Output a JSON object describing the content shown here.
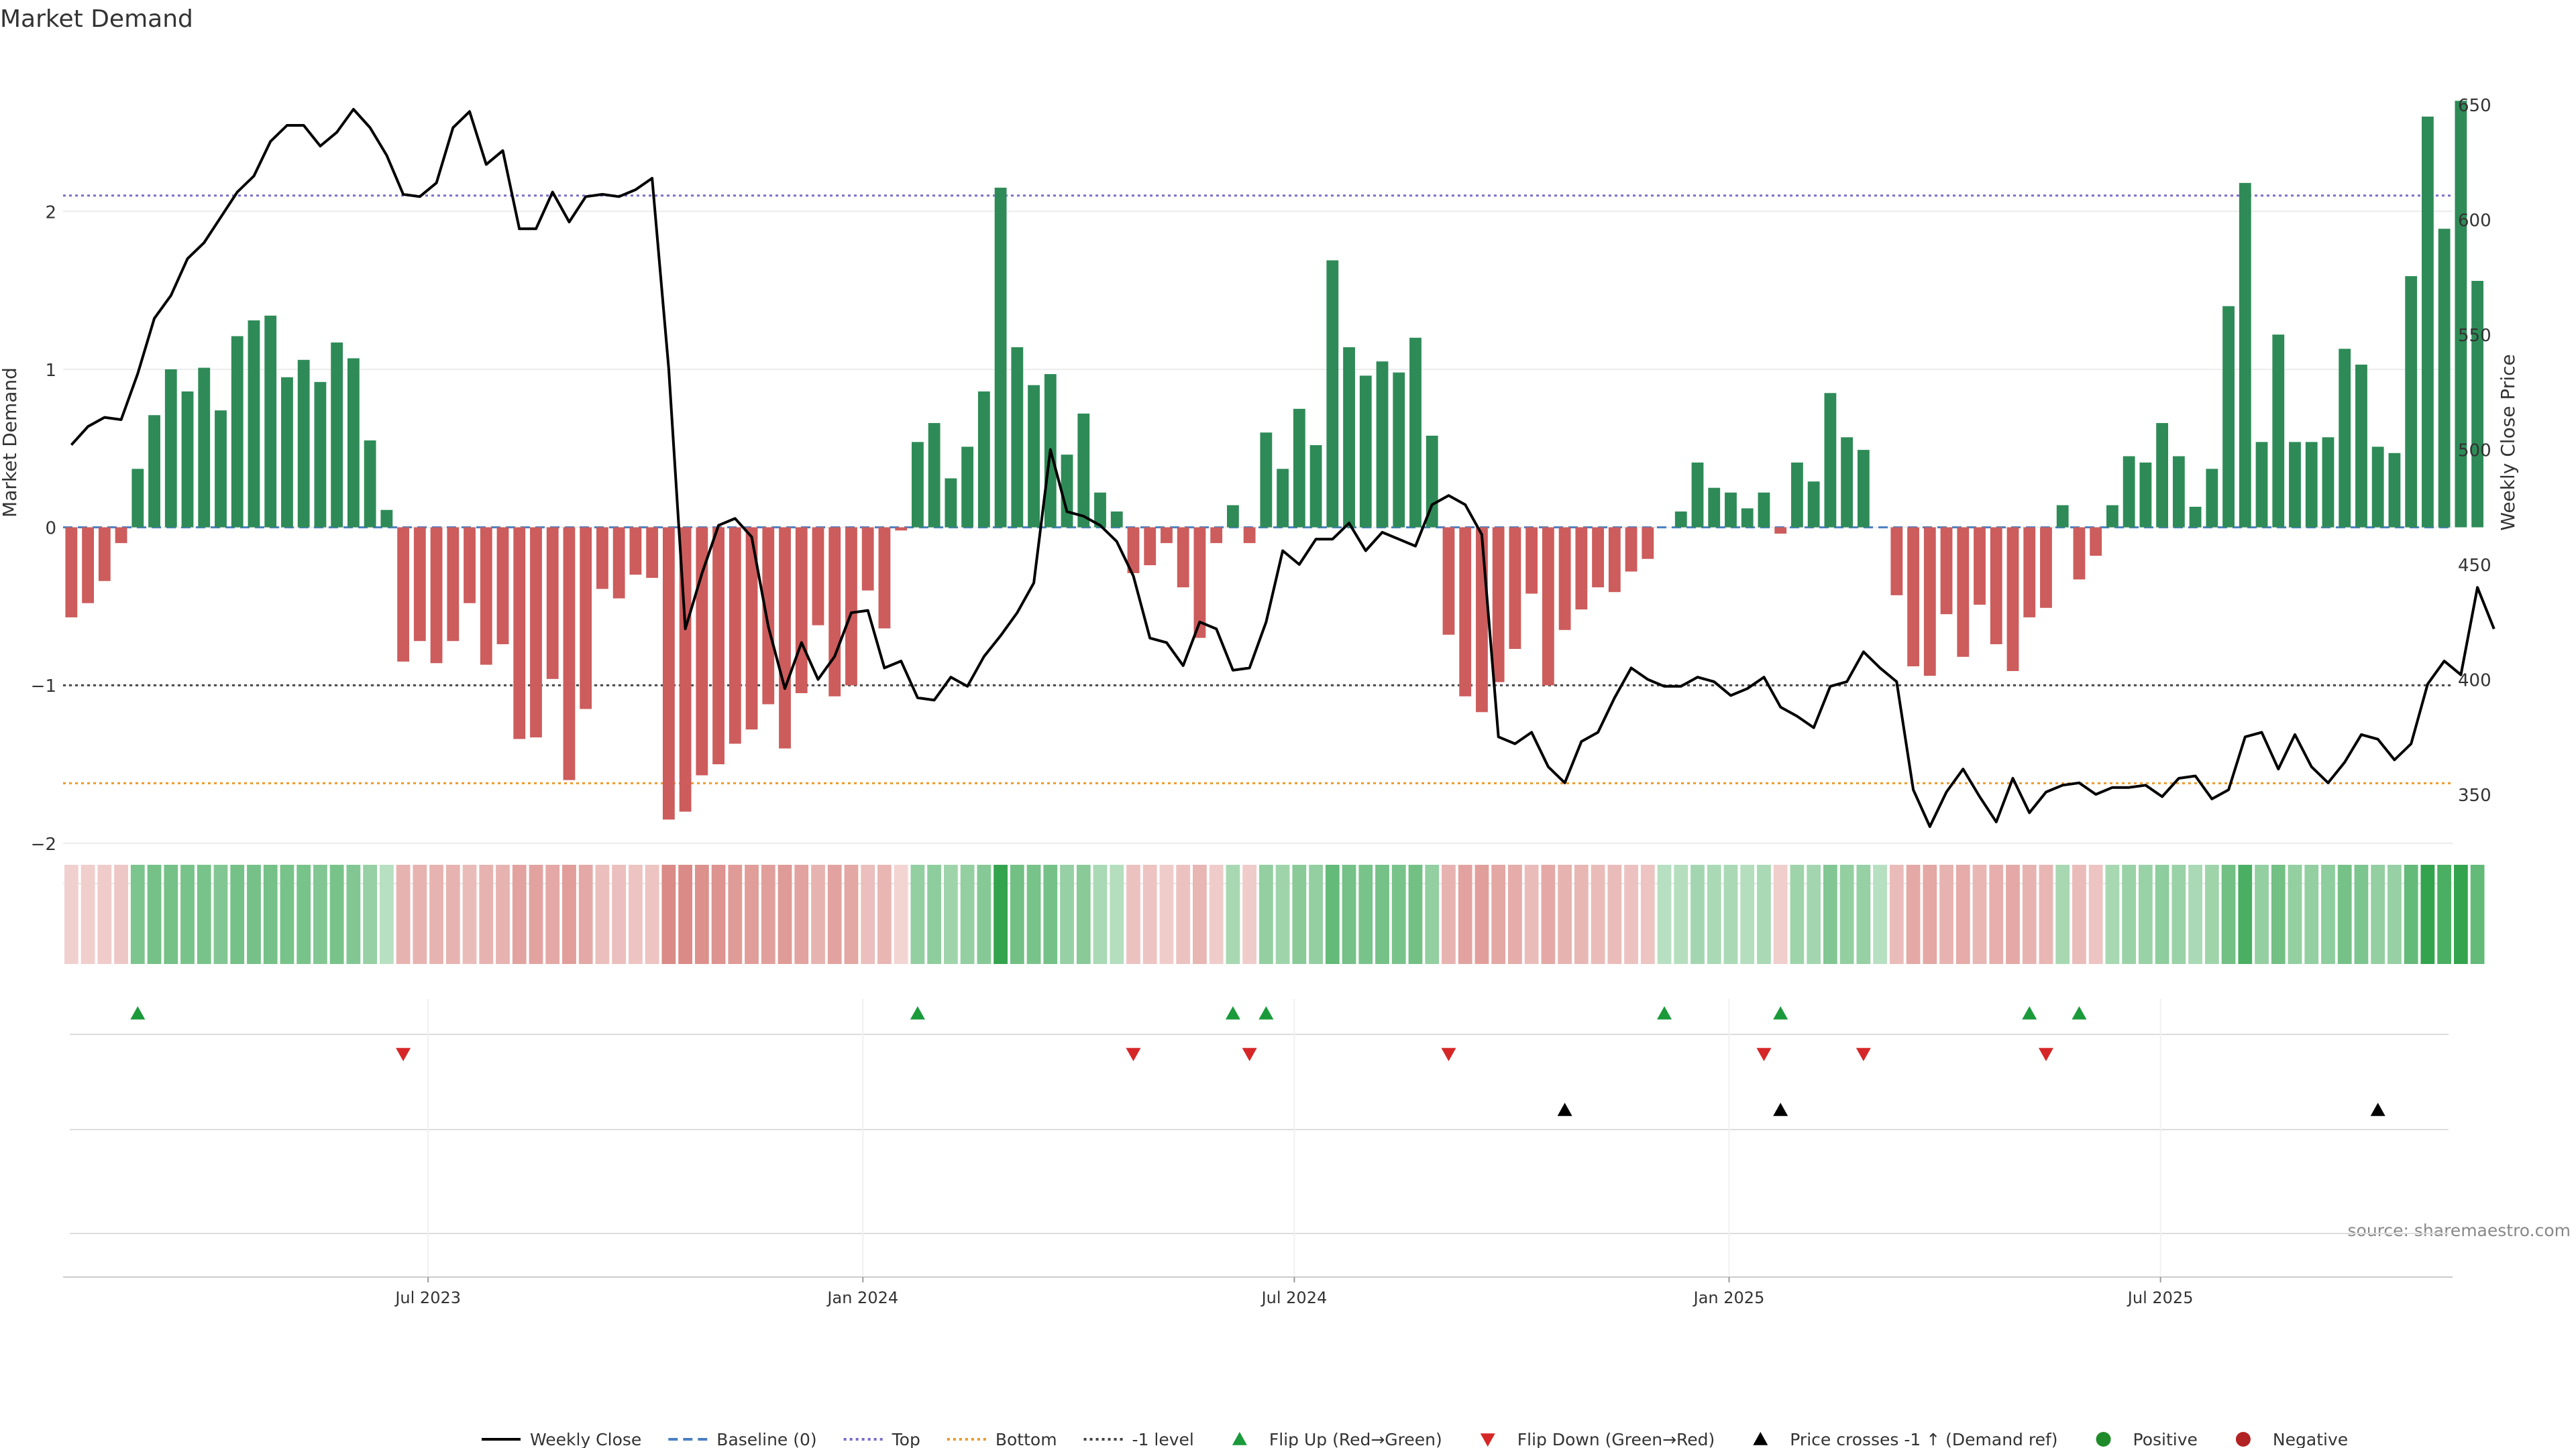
{
  "chart_data": {
    "type": "bar",
    "title": "Market Demand",
    "source": "source: sharemaestro.com",
    "axes": {
      "y_left": {
        "label": "Market Demand",
        "range": [
          -2.2,
          2.85
        ],
        "ticks": [
          {
            "v": -2,
            "label": "−2"
          },
          {
            "v": -1,
            "label": "−1"
          },
          {
            "v": 0,
            "label": "0"
          },
          {
            "v": 1,
            "label": "1"
          },
          {
            "v": 2,
            "label": "2"
          }
        ]
      },
      "y_right": {
        "label": "Weekly Close Price",
        "range": [
          315,
          662
        ],
        "ticks": [
          {
            "v": 350,
            "label": "350"
          },
          {
            "v": 400,
            "label": "400"
          },
          {
            "v": 450,
            "label": "450"
          },
          {
            "v": 500,
            "label": "500"
          },
          {
            "v": 550,
            "label": "550"
          },
          {
            "v": 600,
            "label": "600"
          },
          {
            "v": 650,
            "label": "650"
          }
        ]
      },
      "x": {
        "label": "",
        "range": [
          -0.5,
          143.5
        ],
        "ticks": [
          {
            "i": 21.5,
            "label": "Jul 2023"
          },
          {
            "i": 47.7,
            "label": "Jan 2024"
          },
          {
            "i": 73.7,
            "label": "Jul 2024"
          },
          {
            "i": 99.9,
            "label": "Jan 2025"
          },
          {
            "i": 125.9,
            "label": "Jul 2025"
          }
        ]
      }
    },
    "reference_lines": [
      {
        "name": "Baseline (0)",
        "y": 0,
        "color": "#4a7fc1",
        "style": "dashed-long"
      },
      {
        "name": "Top",
        "y": 2.1,
        "color": "#7a6cc9",
        "style": "dotted"
      },
      {
        "name": "Bottom",
        "y": -1.62,
        "color": "#ee9a2b",
        "style": "dotted"
      },
      {
        "name": "-1 level",
        "y": -1,
        "color": "#444444",
        "style": "dotted"
      }
    ],
    "demand": [
      -0.57,
      -0.48,
      -0.34,
      -0.1,
      0.37,
      0.71,
      1.0,
      0.86,
      1.01,
      0.74,
      1.21,
      1.31,
      1.34,
      0.95,
      1.06,
      0.92,
      1.17,
      1.07,
      0.55,
      0.11,
      -0.85,
      -0.72,
      -0.86,
      -0.72,
      -0.48,
      -0.87,
      -0.74,
      -1.34,
      -1.33,
      -0.96,
      -1.6,
      -1.15,
      -0.39,
      -0.45,
      -0.3,
      -0.32,
      -1.85,
      -1.8,
      -1.57,
      -1.5,
      -1.37,
      -1.28,
      -1.12,
      -1.4,
      -1.05,
      -0.62,
      -1.07,
      -1.0,
      -0.4,
      -0.64,
      -0.02,
      0.54,
      0.66,
      0.31,
      0.51,
      0.86,
      2.15,
      1.14,
      0.9,
      0.97,
      0.46,
      0.72,
      0.22,
      0.1,
      -0.29,
      -0.24,
      -0.1,
      -0.38,
      -0.7,
      -0.1,
      0.14,
      -0.1,
      0.6,
      0.37,
      0.75,
      0.52,
      1.69,
      1.14,
      0.96,
      1.05,
      0.98,
      1.2,
      0.58,
      -0.68,
      -1.07,
      -1.17,
      -0.98,
      -0.77,
      -0.42,
      -1.0,
      -0.65,
      -0.52,
      -0.38,
      -0.41,
      -0.28,
      -0.2,
      0.0,
      0.1,
      0.41,
      0.25,
      0.22,
      0.12,
      0.22,
      -0.04,
      0.41,
      0.29,
      0.85,
      0.57,
      0.49,
      0.0,
      -0.43,
      -0.88,
      -0.94,
      -0.55,
      -0.82,
      -0.49,
      -0.74,
      -0.91,
      -0.57,
      -0.51,
      0.14,
      -0.33,
      -0.18,
      0.14,
      0.45,
      0.41,
      0.66,
      0.45,
      0.13,
      0.37,
      1.4,
      2.18,
      0.54,
      1.22,
      0.54,
      0.54,
      0.57,
      1.13,
      1.03,
      0.51,
      0.47,
      1.59,
      2.6,
      1.89,
      2.7,
      1.56
    ],
    "weekly_close": [
      502,
      510,
      514,
      513,
      533,
      557,
      567,
      583,
      590,
      601,
      612,
      619,
      634,
      641,
      641,
      632,
      638,
      648,
      640,
      628,
      611,
      610,
      616,
      640,
      647,
      624,
      630,
      596,
      596,
      612,
      599,
      610,
      611,
      610,
      613,
      618,
      535,
      422,
      446,
      467,
      470,
      462,
      423,
      396,
      416,
      400,
      410,
      429,
      430,
      405,
      408,
      392,
      391,
      401,
      397,
      410,
      419,
      429,
      442,
      500,
      473,
      471,
      467,
      460,
      445,
      418,
      416,
      406,
      425,
      422,
      404,
      405,
      425,
      456,
      450,
      461,
      461,
      468,
      456,
      464,
      461,
      458,
      476,
      480,
      476,
      463,
      375,
      372,
      377,
      362,
      355,
      373,
      377,
      392,
      405,
      400,
      397,
      397,
      401,
      399,
      393,
      396,
      401,
      388,
      384,
      379,
      397,
      399,
      412,
      405,
      399,
      352,
      336,
      351,
      361,
      349,
      338,
      357,
      342,
      351,
      354,
      355,
      350,
      353,
      353,
      354,
      349,
      357,
      358,
      348,
      352,
      375,
      377,
      361,
      376,
      362,
      355,
      364,
      376,
      374,
      365,
      372,
      398,
      408,
      402,
      440,
      422
    ],
    "flip_up_idx": [
      4,
      51,
      70,
      72,
      96,
      103,
      118,
      121
    ],
    "flip_down_idx": [
      20,
      64,
      71,
      83,
      102,
      108,
      119
    ],
    "price_cross_idx": [
      90,
      103,
      139
    ],
    "heat_levels": [
      0.18,
      0.2,
      0.22,
      0.26,
      0.55,
      0.6,
      0.6,
      0.58,
      0.58,
      0.52,
      0.6,
      0.6,
      0.6,
      0.58,
      0.58,
      0.52,
      0.58,
      0.52,
      0.4,
      0.2,
      0.42,
      0.42,
      0.42,
      0.42,
      0.35,
      0.42,
      0.42,
      0.55,
      0.55,
      0.5,
      0.6,
      0.5,
      0.32,
      0.32,
      0.28,
      0.28,
      0.75,
      0.75,
      0.7,
      0.68,
      0.62,
      0.6,
      0.58,
      0.62,
      0.55,
      0.42,
      0.55,
      0.52,
      0.32,
      0.4,
      0.15,
      0.42,
      0.45,
      0.35,
      0.42,
      0.5,
      1.0,
      0.62,
      0.58,
      0.6,
      0.4,
      0.48,
      0.28,
      0.22,
      0.3,
      0.28,
      0.22,
      0.3,
      0.4,
      0.22,
      0.3,
      0.22,
      0.42,
      0.35,
      0.48,
      0.42,
      0.7,
      0.6,
      0.58,
      0.6,
      0.58,
      0.62,
      0.42,
      0.42,
      0.55,
      0.58,
      0.52,
      0.48,
      0.35,
      0.5,
      0.42,
      0.4,
      0.35,
      0.35,
      0.3,
      0.28,
      0.2,
      0.22,
      0.32,
      0.28,
      0.28,
      0.22,
      0.28,
      0.2,
      0.35,
      0.32,
      0.52,
      0.42,
      0.4,
      0.2,
      0.35,
      0.5,
      0.52,
      0.42,
      0.48,
      0.4,
      0.45,
      0.5,
      0.42,
      0.4,
      0.3,
      0.35,
      0.28,
      0.3,
      0.38,
      0.38,
      0.45,
      0.38,
      0.28,
      0.35,
      0.62,
      0.85,
      0.42,
      0.62,
      0.42,
      0.42,
      0.45,
      0.6,
      0.55,
      0.42,
      0.4,
      0.7,
      1.0,
      0.85,
      1.0,
      0.7
    ],
    "colors": {
      "positive": "#2e8b57",
      "negative": "#cd5c5c",
      "close_line": "#000000",
      "flip_up": "#1a9a3a",
      "flip_down": "#d62728",
      "price_cross": "#000000",
      "positive_dot": "#1f8a2a",
      "negative_dot": "#b22222"
    },
    "legend": [
      {
        "name": "Weekly Close",
        "kind": "line",
        "color": "#000000"
      },
      {
        "name": "Baseline (0)",
        "kind": "dashed",
        "color": "#4a7fc1"
      },
      {
        "name": "Top",
        "kind": "dotted",
        "color": "#7a6cc9"
      },
      {
        "name": "Bottom",
        "kind": "dotted",
        "color": "#ee9a2b"
      },
      {
        "name": "-1 level",
        "kind": "dotted",
        "color": "#444444"
      },
      {
        "name": "Flip Up (Red→Green)",
        "kind": "tri-up",
        "color": "#1a9a3a"
      },
      {
        "name": "Flip Down (Green→Red)",
        "kind": "tri-down",
        "color": "#d62728"
      },
      {
        "name": "Price crosses -1 ↑ (Demand ref)",
        "kind": "tri-up",
        "color": "#000000"
      },
      {
        "name": "Positive",
        "kind": "dot",
        "color": "#1f8a2a"
      },
      {
        "name": "Negative",
        "kind": "dot",
        "color": "#b22222"
      }
    ]
  }
}
